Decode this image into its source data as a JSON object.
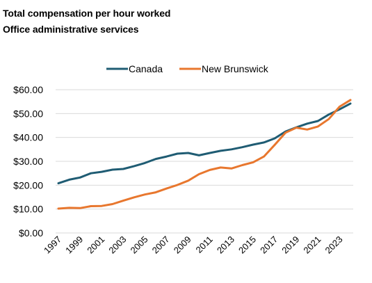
{
  "chart_data": {
    "type": "line",
    "title": "Total compensation per hour worked",
    "subtitle": "Office administrative services",
    "xlabel": "",
    "ylabel": "",
    "x": [
      1997,
      1998,
      1999,
      2000,
      2001,
      2002,
      2003,
      2004,
      2005,
      2006,
      2007,
      2008,
      2009,
      2010,
      2011,
      2012,
      2013,
      2014,
      2015,
      2016,
      2017,
      2018,
      2019,
      2020,
      2021,
      2022,
      2023,
      2024
    ],
    "x_tick_labels": [
      "1997",
      "1999",
      "2001",
      "2003",
      "2005",
      "2007",
      "2009",
      "2011",
      "2013",
      "2015",
      "2017",
      "2019",
      "2021",
      "2023"
    ],
    "y_tick_values": [
      0,
      10,
      20,
      30,
      40,
      50,
      60
    ],
    "y_tick_labels": [
      "$0.00",
      "$10.00",
      "$20.00",
      "$30.00",
      "$40.00",
      "$50.00",
      "$60.00"
    ],
    "ylim": [
      0,
      60
    ],
    "grid": "horizontal",
    "legend_position": "top",
    "series": [
      {
        "name": "Canada",
        "color": "#1f5c73",
        "values": [
          20.8,
          22.3,
          23.2,
          25.0,
          25.6,
          26.5,
          26.8,
          28.0,
          29.3,
          31.0,
          32.0,
          33.2,
          33.5,
          32.5,
          33.5,
          34.4,
          35.0,
          35.9,
          37.0,
          37.9,
          39.6,
          42.5,
          44.2,
          45.8,
          46.9,
          49.6,
          51.8,
          54.2
        ]
      },
      {
        "name": "New Brunswick",
        "color": "#e8772e",
        "values": [
          10.2,
          10.5,
          10.4,
          11.2,
          11.3,
          12.1,
          13.5,
          14.9,
          16.1,
          17.0,
          18.6,
          20.1,
          21.9,
          24.6,
          26.4,
          27.4,
          27.0,
          28.4,
          29.6,
          32.0,
          36.9,
          42.0,
          44.1,
          43.3,
          44.6,
          47.7,
          52.9,
          55.7
        ]
      }
    ]
  }
}
